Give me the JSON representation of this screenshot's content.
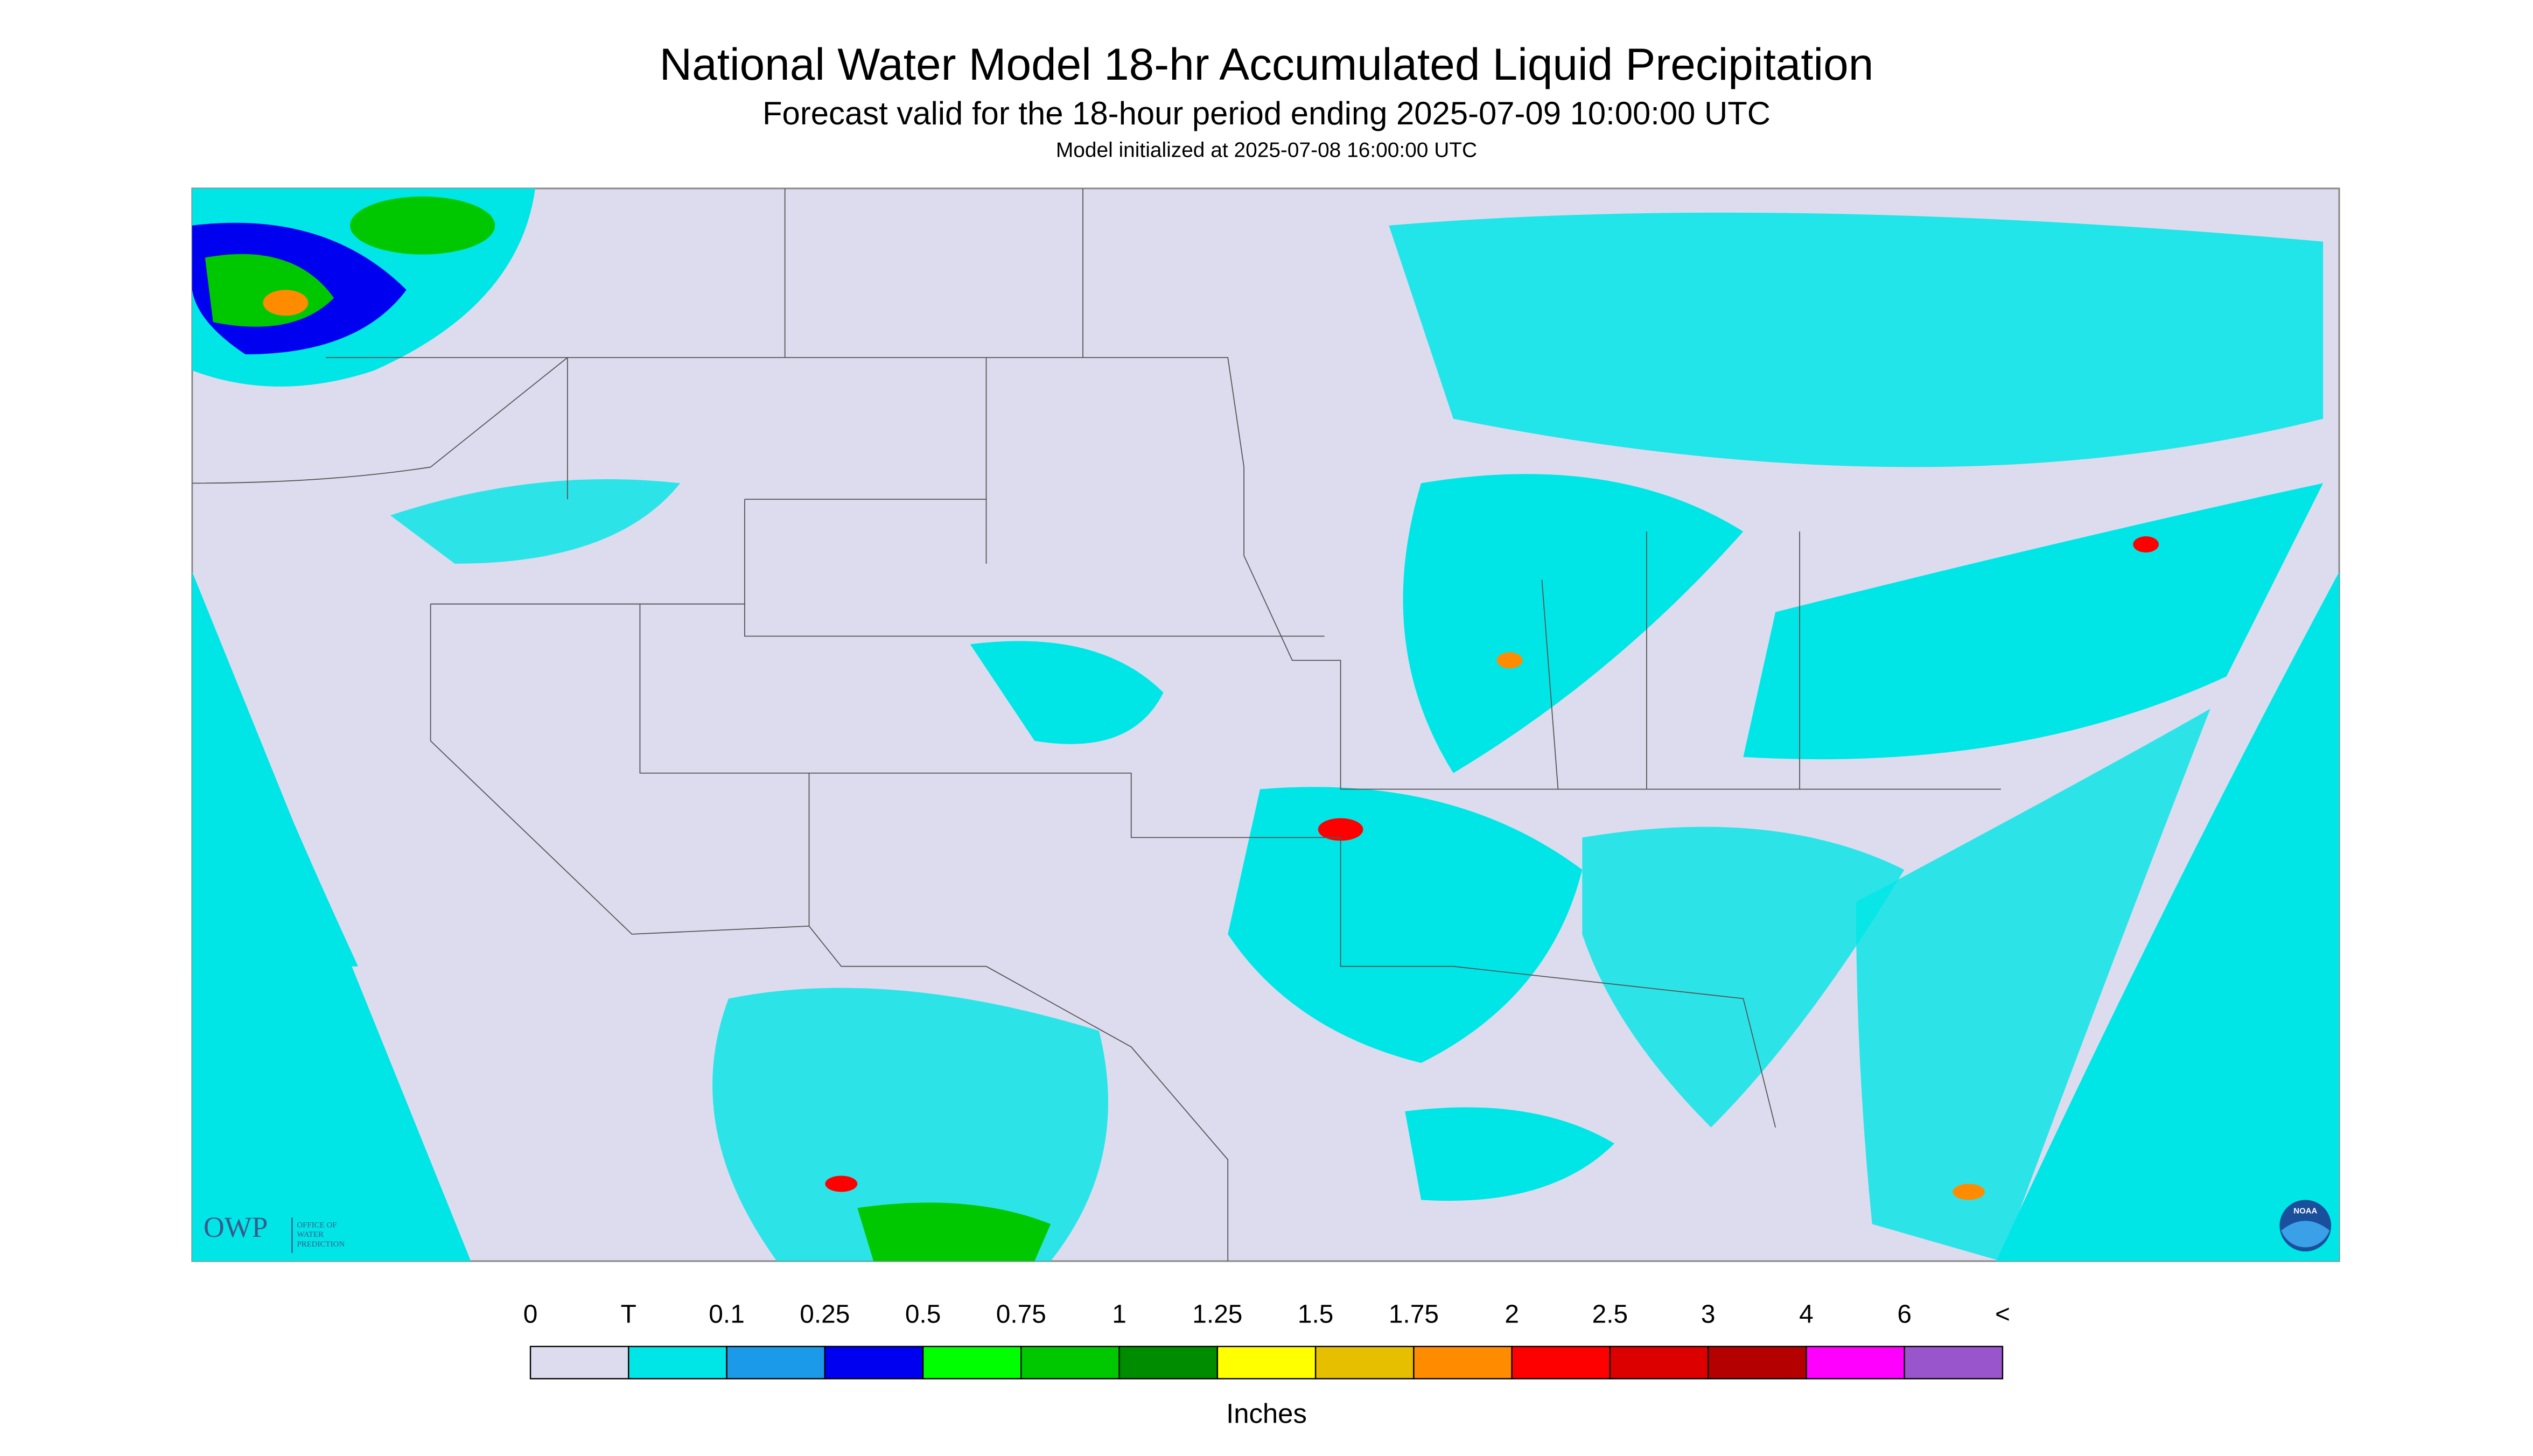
{
  "header": {
    "title": "National Water Model 18-hr Accumulated Liquid Precipitation",
    "subtitle": "Forecast valid for the 18-hour period ending 2025-07-09 10:00:00 UTC",
    "initialized": "Model initialized at 2025-07-08 16:00:00 UTC"
  },
  "logos": {
    "owp": "OWP",
    "owp_lines": [
      "OFFICE OF",
      "WATER",
      "PREDICTION"
    ],
    "noaa": "NOAA"
  },
  "legend": {
    "labels": [
      "0",
      "T",
      "0.1",
      "0.25",
      "0.5",
      "0.75",
      "1",
      "1.25",
      "1.5",
      "1.75",
      "2",
      "2.5",
      "3",
      "4",
      "6",
      "<"
    ],
    "colors": [
      "#dddcef",
      "#00e6e6",
      "#1a9ae8",
      "#0000f0",
      "#00ff00",
      "#00c800",
      "#008c00",
      "#ffff00",
      "#e6c000",
      "#ff8c00",
      "#ff0000",
      "#dc0000",
      "#b40000",
      "#ff00ff",
      "#9955cc"
    ],
    "unit": "Inches"
  }
}
